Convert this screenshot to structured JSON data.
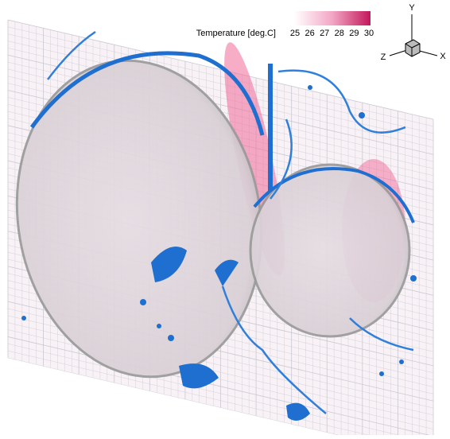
{
  "legend": {
    "title": "Temperature [deg.C]",
    "ticks": [
      "25",
      "26",
      "27",
      "28",
      "29",
      "30"
    ]
  },
  "axes": {
    "y": "Y",
    "x": "X",
    "z": "Z"
  }
}
